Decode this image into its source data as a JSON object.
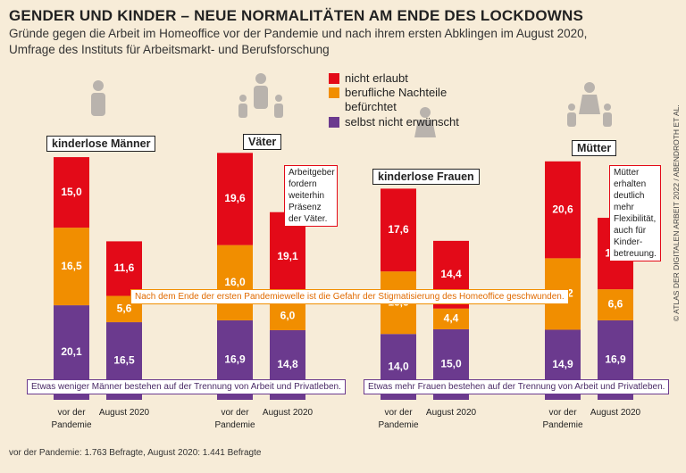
{
  "chart_data": {
    "type": "stacked-bar",
    "title": "GENDER UND KINDER – NEUE NORMALITÄTEN AM ENDE DES LOCKDOWNS",
    "subtitle": [
      "Gründe gegen die Arbeit im Homeoffice vor der Pandemie und nach ihrem ersten Abklingen im August 2020,",
      "Umfrage des Instituts für Arbeitsmarkt- und Berufsforschung"
    ],
    "groups": [
      "kinderlose Männer",
      "Väter",
      "kinderlose Frauen",
      "Mütter"
    ],
    "categories": [
      "vor der Pandemie",
      "August 2020",
      "vor der Pandemie",
      "August 2020",
      "vor der Pandemie",
      "August 2020",
      "vor der Pandemie",
      "August 2020"
    ],
    "series": [
      {
        "name": "selbst nicht erwünscht",
        "color": "#6b3a8e",
        "values": [
          20.1,
          16.5,
          16.9,
          14.8,
          14.0,
          15.0,
          14.9,
          16.9
        ],
        "value_labels": [
          "20,1",
          "16,5",
          "16,9",
          "14,8",
          "14,0",
          "15,0",
          "14,9",
          "16,9"
        ]
      },
      {
        "name": "berufliche Nachteile befürchtet",
        "color": "#f18e00",
        "values": [
          16.5,
          5.6,
          16.0,
          6.0,
          13.3,
          4.4,
          15.2,
          6.6
        ],
        "value_labels": [
          "16,5",
          "5,6",
          "16,0",
          "6,0",
          "13,3",
          "4,4",
          "15,2",
          "6,6"
        ]
      },
      {
        "name": "nicht erlaubt",
        "color": "#e30a18",
        "values": [
          15.0,
          11.6,
          19.6,
          19.1,
          17.6,
          14.4,
          20.6,
          15.2
        ],
        "value_labels": [
          "15,0",
          "11,6",
          "19,6",
          "19,1",
          "17,6",
          "14,4",
          "20,6",
          "15,2"
        ]
      }
    ],
    "annotations": [
      "Arbeitgeber fordern weiterhin Präsenz der Väter.",
      "Mütter erhalten deutlich mehr Flexibilität, auch für Kinder-betreuung.",
      "Nach dem Ende der ersten Pandemiewelle ist die Gefahr der Stigmatisierung des Homeoffice geschwunden.",
      "Etwas weniger Männer bestehen auf der Trennung von Arbeit und Privatleben.",
      "Etwas mehr Frauen bestehen auf der Trennung von Arbeit und Privatleben."
    ],
    "footnote": "vor der Pandemie: 1.763 Befragte, August 2020: 1.441 Befragte",
    "credit": "© ATLAS DER DIGITALEN ARBEIT 2022 / ABENDROTH ET AL."
  }
}
